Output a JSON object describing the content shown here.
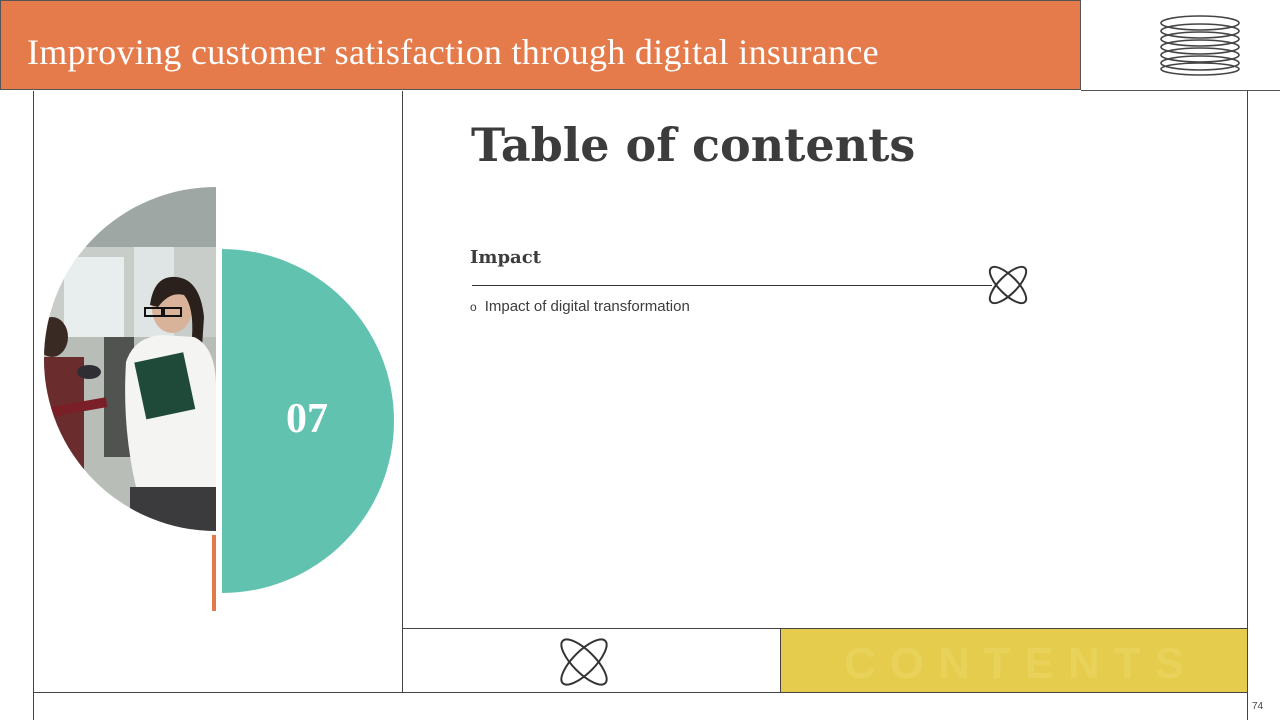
{
  "header": {
    "title": "Improving customer satisfaction through digital insurance"
  },
  "logo": {
    "icon": "stacked-rings-icon"
  },
  "section": {
    "number": "07"
  },
  "main": {
    "title": "Table of contents",
    "heading": "Impact",
    "bullets": [
      "Impact of digital transformation"
    ],
    "watermark": "CONTENTS"
  },
  "page_number": "74",
  "colors": {
    "header_bg": "#e57b4b",
    "teal": "#62c2b0",
    "yellow": "#e6cc4c",
    "accent": "#e07a48",
    "text": "#3c3c3c"
  },
  "icons": [
    "atom-icon",
    "stacked-rings-icon"
  ]
}
